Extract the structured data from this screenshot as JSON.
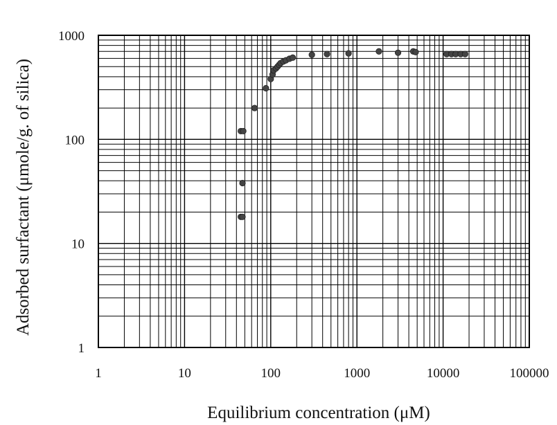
{
  "chart_data": {
    "type": "scatter",
    "xlabel": "Equilibrium concentration (μM)",
    "ylabel": "Adsorbed surfactant (μmole/g. of silica)",
    "x_scale": "log",
    "y_scale": "log",
    "xlim": [
      1,
      100000
    ],
    "ylim": [
      1,
      1000
    ],
    "x_ticks": [
      "1",
      "10",
      "100",
      "1000",
      "10000",
      "100000"
    ],
    "y_ticks": [
      "1",
      "10",
      "100",
      "1000"
    ],
    "grid": true,
    "marker_color": "#444444",
    "points": [
      {
        "x": 45,
        "y": 18
      },
      {
        "x": 47,
        "y": 18
      },
      {
        "x": 47,
        "y": 38
      },
      {
        "x": 45,
        "y": 120
      },
      {
        "x": 48,
        "y": 120
      },
      {
        "x": 65,
        "y": 200
      },
      {
        "x": 88,
        "y": 310
      },
      {
        "x": 100,
        "y": 380
      },
      {
        "x": 105,
        "y": 420
      },
      {
        "x": 108,
        "y": 460
      },
      {
        "x": 115,
        "y": 480
      },
      {
        "x": 120,
        "y": 500
      },
      {
        "x": 125,
        "y": 520
      },
      {
        "x": 130,
        "y": 540
      },
      {
        "x": 140,
        "y": 560
      },
      {
        "x": 150,
        "y": 575
      },
      {
        "x": 165,
        "y": 595
      },
      {
        "x": 180,
        "y": 610
      },
      {
        "x": 300,
        "y": 650
      },
      {
        "x": 450,
        "y": 660
      },
      {
        "x": 800,
        "y": 670
      },
      {
        "x": 1800,
        "y": 700
      },
      {
        "x": 3000,
        "y": 680
      },
      {
        "x": 4500,
        "y": 700
      },
      {
        "x": 4800,
        "y": 690
      },
      {
        "x": 11000,
        "y": 660
      },
      {
        "x": 12500,
        "y": 660
      },
      {
        "x": 14000,
        "y": 660
      },
      {
        "x": 16000,
        "y": 660
      },
      {
        "x": 18000,
        "y": 660
      }
    ]
  }
}
